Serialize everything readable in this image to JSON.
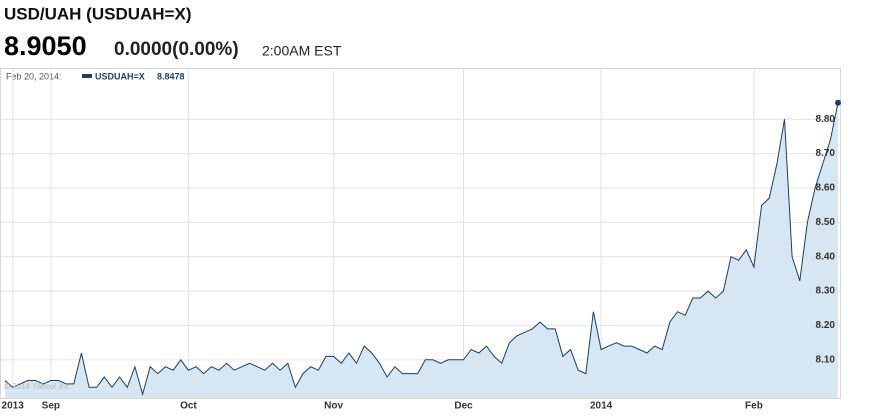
{
  "header": {
    "title": "USD/UAH (USDUAH=X)",
    "price": "8.9050",
    "change": "0.0000(0.00%)",
    "time": "2:00AM EST"
  },
  "chart_data": {
    "type": "line",
    "legend_date": "Feb 20, 2014:",
    "watermark": "© 2014 Yahoo! Inc.",
    "categories": [
      null,
      "2013",
      null,
      null,
      null,
      null,
      "Sep",
      null,
      null,
      null,
      null,
      null,
      null,
      null,
      null,
      null,
      null,
      null,
      null,
      null,
      null,
      null,
      null,
      null,
      "Oct",
      null,
      null,
      null,
      null,
      null,
      null,
      null,
      null,
      null,
      null,
      null,
      null,
      null,
      null,
      null,
      null,
      null,
      null,
      "Nov",
      null,
      null,
      null,
      null,
      null,
      null,
      null,
      null,
      null,
      null,
      null,
      null,
      null,
      null,
      null,
      null,
      "Dec",
      null,
      null,
      null,
      null,
      null,
      null,
      null,
      null,
      null,
      null,
      null,
      null,
      null,
      null,
      null,
      null,
      null,
      "2014",
      null,
      null,
      null,
      null,
      null,
      null,
      null,
      null,
      null,
      null,
      null,
      null,
      null,
      null,
      null,
      null,
      null,
      null,
      null,
      "Feb",
      null,
      null,
      null,
      null,
      null,
      null,
      null,
      null,
      null,
      null,
      null
    ],
    "series": [
      {
        "name": "USDUAH=X",
        "color": "#1d3f5e",
        "fill": "#d6e6f2",
        "values": [
          8.04,
          8.02,
          8.03,
          8.04,
          8.04,
          8.03,
          8.04,
          8.04,
          8.03,
          8.03,
          8.12,
          8.02,
          8.02,
          8.05,
          8.02,
          8.05,
          8.02,
          8.08,
          8.0,
          8.08,
          8.06,
          8.08,
          8.07,
          8.1,
          8.07,
          8.08,
          8.06,
          8.08,
          8.07,
          8.09,
          8.07,
          8.08,
          8.09,
          8.08,
          8.07,
          8.09,
          8.07,
          8.09,
          8.02,
          8.06,
          8.08,
          8.07,
          8.11,
          8.11,
          8.09,
          8.12,
          8.09,
          8.14,
          8.12,
          8.09,
          8.05,
          8.08,
          8.06,
          8.06,
          8.06,
          8.1,
          8.1,
          8.09,
          8.1,
          8.1,
          8.1,
          8.13,
          8.12,
          8.14,
          8.11,
          8.09,
          8.15,
          8.17,
          8.18,
          8.19,
          8.21,
          8.19,
          8.19,
          8.11,
          8.13,
          8.07,
          8.06,
          8.24,
          8.13,
          8.14,
          8.15,
          8.14,
          8.14,
          8.13,
          8.12,
          8.14,
          8.13,
          8.21,
          8.24,
          8.23,
          8.28,
          8.28,
          8.3,
          8.28,
          8.3,
          8.4,
          8.39,
          8.42,
          8.37,
          8.55,
          8.57,
          8.67,
          8.8,
          8.4,
          8.33,
          8.5,
          8.6,
          8.67,
          8.74,
          8.8478
        ]
      }
    ],
    "ylim": [
      7.989,
      8.949
    ],
    "yticks": [
      {
        "value": 8.1,
        "label": "8.10"
      },
      {
        "value": 8.2,
        "label": "8.20"
      },
      {
        "value": 8.3,
        "label": "8.30"
      },
      {
        "value": 8.4,
        "label": "8.40"
      },
      {
        "value": 8.5,
        "label": "8.50"
      },
      {
        "value": 8.6,
        "label": "8.60"
      },
      {
        "value": 8.7,
        "label": "8.70"
      },
      {
        "value": 8.8,
        "label": "8.80"
      }
    ],
    "grid": true
  }
}
